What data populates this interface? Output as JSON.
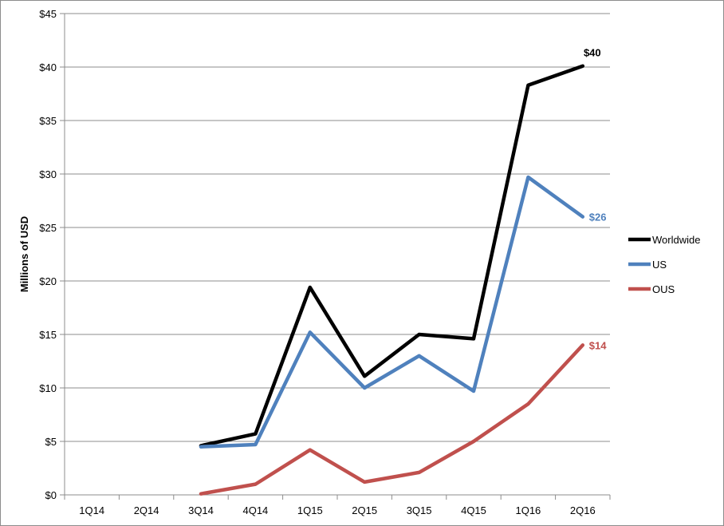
{
  "chart_data": {
    "type": "line",
    "title": "",
    "xlabel": "",
    "ylabel": "Millions of USD",
    "categories": [
      "1Q14",
      "2Q14",
      "3Q14",
      "4Q14",
      "1Q15",
      "2Q15",
      "3Q15",
      "4Q15",
      "1Q16",
      "2Q16"
    ],
    "ylim": [
      0,
      45
    ],
    "y_ticks": [
      "$0",
      "$5",
      "$10",
      "$15",
      "$20",
      "$25",
      "$30",
      "$35",
      "$40",
      "$45"
    ],
    "grid": true,
    "legend_position": "right",
    "series": [
      {
        "name": "Worldwide",
        "color": "#000000",
        "values": [
          null,
          null,
          4.6,
          5.7,
          19.4,
          11.1,
          15.0,
          14.6,
          38.3,
          40.1
        ],
        "end_label": "$40"
      },
      {
        "name": "US",
        "color": "#4f81bd",
        "values": [
          null,
          null,
          4.5,
          4.7,
          15.2,
          10.0,
          13.0,
          9.7,
          29.7,
          26.0
        ],
        "end_label": "$26"
      },
      {
        "name": "OUS",
        "color": "#c0504d",
        "values": [
          null,
          null,
          0.1,
          1.0,
          4.2,
          1.2,
          2.1,
          5.0,
          8.5,
          14.0
        ],
        "end_label": "$14"
      }
    ]
  }
}
